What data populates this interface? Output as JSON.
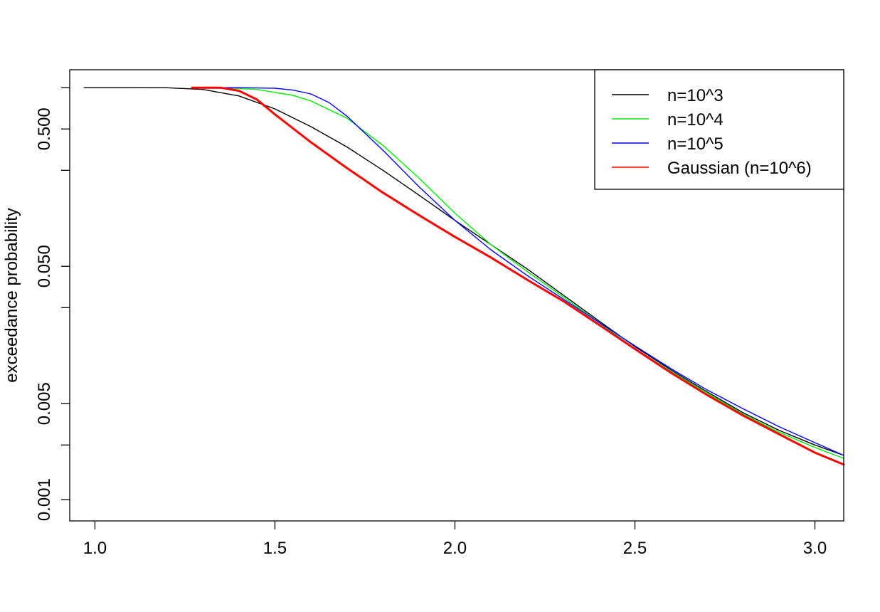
{
  "chart_data": {
    "type": "line",
    "title": "",
    "xlabel": "",
    "ylabel": "exceedance probability",
    "xlim": [
      0.93,
      3.08
    ],
    "ylim": [
      0.0007,
      1.35
    ],
    "y_scale": "log",
    "grid": false,
    "legend_position": "top-right",
    "x_ticks": [
      1.0,
      1.5,
      2.0,
      2.5,
      3.0
    ],
    "x_tick_labels": [
      "1.0",
      "1.5",
      "2.0",
      "2.5",
      "3.0"
    ],
    "y_ticks": [
      0.001,
      0.005,
      0.05,
      0.5
    ],
    "y_tick_labels": [
      "0.001",
      "0.005",
      "0.050",
      "0.500"
    ],
    "y_minor_ticks": [
      0.0025,
      0.025,
      0.25,
      1.0
    ],
    "series": [
      {
        "name": "n=10^3",
        "color": "#000000",
        "points": [
          [
            0.97,
            1.0
          ],
          [
            1.1,
            1.0
          ],
          [
            1.2,
            0.998
          ],
          [
            1.3,
            0.97
          ],
          [
            1.4,
            0.87
          ],
          [
            1.5,
            0.7
          ],
          [
            1.6,
            0.52
          ],
          [
            1.7,
            0.37
          ],
          [
            1.8,
            0.25
          ],
          [
            1.9,
            0.165
          ],
          [
            2.0,
            0.108
          ],
          [
            2.1,
            0.072
          ],
          [
            2.2,
            0.048
          ],
          [
            2.3,
            0.031
          ],
          [
            2.4,
            0.02
          ],
          [
            2.5,
            0.013
          ],
          [
            2.6,
            0.0088
          ],
          [
            2.7,
            0.0061
          ],
          [
            2.8,
            0.0043
          ],
          [
            2.9,
            0.0032
          ],
          [
            3.0,
            0.0025
          ],
          [
            3.08,
            0.0021
          ]
        ]
      },
      {
        "name": "n=10^4",
        "color": "#00ee00",
        "points": [
          [
            1.27,
            1.0
          ],
          [
            1.35,
            0.999
          ],
          [
            1.45,
            0.97
          ],
          [
            1.55,
            0.88
          ],
          [
            1.6,
            0.8
          ],
          [
            1.7,
            0.6
          ],
          [
            1.8,
            0.38
          ],
          [
            1.9,
            0.22
          ],
          [
            2.0,
            0.122
          ],
          [
            2.1,
            0.072
          ],
          [
            2.2,
            0.046
          ],
          [
            2.3,
            0.03
          ],
          [
            2.4,
            0.0195
          ],
          [
            2.5,
            0.0126
          ],
          [
            2.6,
            0.0086
          ],
          [
            2.7,
            0.006
          ],
          [
            2.8,
            0.0042
          ],
          [
            2.9,
            0.0031
          ],
          [
            3.0,
            0.0024
          ],
          [
            3.08,
            0.002
          ]
        ]
      },
      {
        "name": "n=10^5",
        "color": "#0000ff",
        "points": [
          [
            1.27,
            1.0
          ],
          [
            1.4,
            1.0
          ],
          [
            1.5,
            0.99
          ],
          [
            1.55,
            0.96
          ],
          [
            1.6,
            0.9
          ],
          [
            1.65,
            0.78
          ],
          [
            1.7,
            0.62
          ],
          [
            1.8,
            0.35
          ],
          [
            1.9,
            0.19
          ],
          [
            2.0,
            0.108
          ],
          [
            2.1,
            0.066
          ],
          [
            2.2,
            0.043
          ],
          [
            2.3,
            0.029
          ],
          [
            2.4,
            0.0195
          ],
          [
            2.5,
            0.0132
          ],
          [
            2.6,
            0.009
          ],
          [
            2.7,
            0.0063
          ],
          [
            2.8,
            0.0046
          ],
          [
            2.9,
            0.0034
          ],
          [
            3.0,
            0.0026
          ],
          [
            3.08,
            0.0021
          ]
        ]
      },
      {
        "name": "Gaussian (n=10^6)",
        "color": "#ff0000",
        "points": [
          [
            1.27,
            1.0
          ],
          [
            1.35,
            0.998
          ],
          [
            1.4,
            0.95
          ],
          [
            1.45,
            0.82
          ],
          [
            1.5,
            0.64
          ],
          [
            1.6,
            0.4
          ],
          [
            1.7,
            0.26
          ],
          [
            1.8,
            0.172
          ],
          [
            1.9,
            0.118
          ],
          [
            2.0,
            0.082
          ],
          [
            2.1,
            0.058
          ],
          [
            2.2,
            0.04
          ],
          [
            2.3,
            0.028
          ],
          [
            2.4,
            0.0188
          ],
          [
            2.5,
            0.0125
          ],
          [
            2.6,
            0.0084
          ],
          [
            2.7,
            0.0058
          ],
          [
            2.8,
            0.0041
          ],
          [
            2.9,
            0.003
          ],
          [
            3.0,
            0.0022
          ],
          [
            3.08,
            0.0018
          ]
        ]
      }
    ]
  }
}
